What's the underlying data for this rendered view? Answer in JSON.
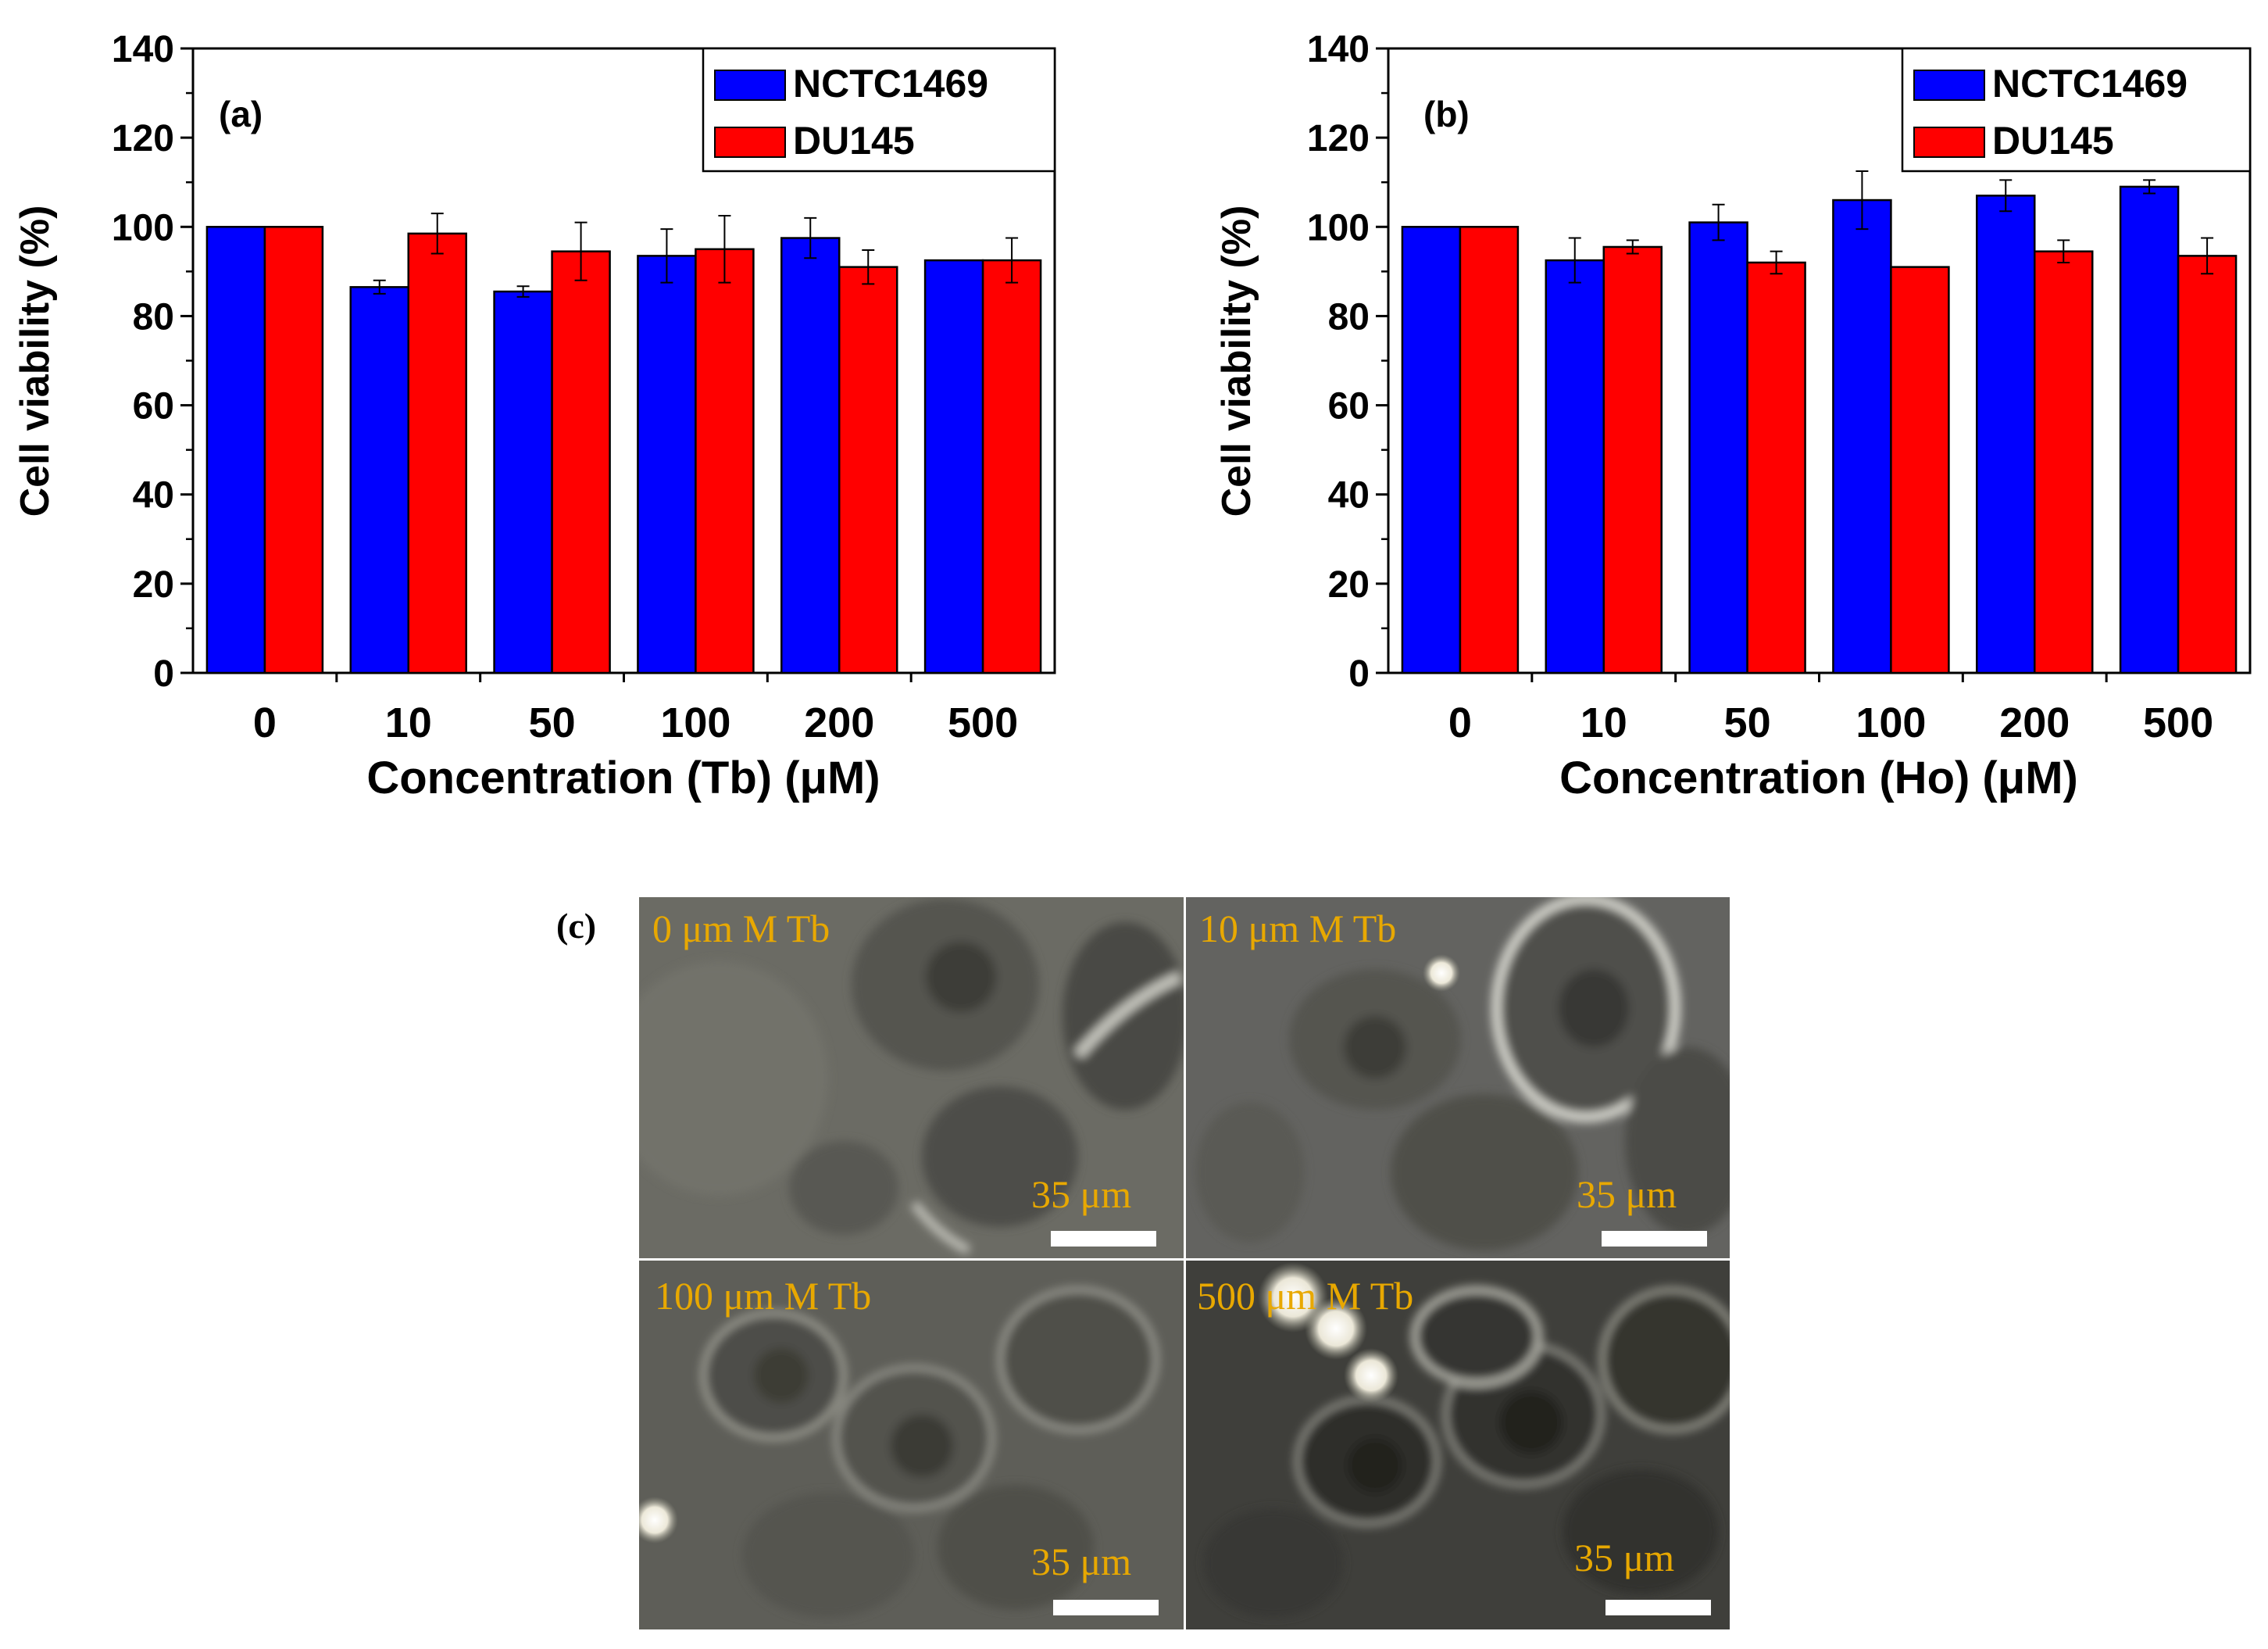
{
  "chart_data": [
    {
      "type": "bar",
      "panel": "(a)",
      "title": "",
      "xlabel": "Concentration (Tb) (μM)",
      "ylabel": "Cell viability (%)",
      "ylim": [
        0,
        140
      ],
      "yticks": [
        0,
        20,
        40,
        60,
        80,
        100,
        120,
        140
      ],
      "categories": [
        "0",
        "10",
        "50",
        "100",
        "200",
        "500"
      ],
      "legend_position": "top-right",
      "series": [
        {
          "name": "NCTC1469",
          "color": "#0000ff",
          "values": [
            100,
            86.5,
            85.5,
            93.5,
            97.5,
            92.5
          ],
          "errors": [
            0,
            1.5,
            1.2,
            6,
            4.5,
            0
          ]
        },
        {
          "name": "DU145",
          "color": "#ff0000",
          "values": [
            100,
            98.5,
            94.5,
            95,
            91,
            92.5
          ],
          "errors": [
            0,
            4.5,
            6.5,
            7.5,
            3.8,
            5
          ]
        }
      ]
    },
    {
      "type": "bar",
      "panel": "(b)",
      "title": "",
      "xlabel": "Concentration (Ho) (μM)",
      "ylabel": "Cell viability (%)",
      "ylim": [
        0,
        140
      ],
      "yticks": [
        0,
        20,
        40,
        60,
        80,
        100,
        120,
        140
      ],
      "categories": [
        "0",
        "10",
        "50",
        "100",
        "200",
        "500"
      ],
      "legend_position": "top-right",
      "series": [
        {
          "name": "NCTC1469",
          "color": "#0000ff",
          "values": [
            100,
            92.5,
            101,
            106,
            107,
            109
          ],
          "errors": [
            0,
            5,
            4,
            6.5,
            3.5,
            1.5
          ]
        },
        {
          "name": "DU145",
          "color": "#ff0000",
          "values": [
            100,
            95.5,
            92,
            91,
            94.5,
            93.5
          ],
          "errors": [
            0,
            1.5,
            2.5,
            0,
            2.5,
            4
          ]
        }
      ]
    }
  ],
  "micrographs": {
    "panel_label": "(c)",
    "scale_bar": "35 μm",
    "tiles": [
      {
        "label": "0 μm M Tb"
      },
      {
        "label": "10 μm M Tb"
      },
      {
        "label": "100 μm M Tb"
      },
      {
        "label": "500 μm M Tb"
      }
    ]
  },
  "colors": {
    "ncstc": "#0000ff",
    "du145": "#ff0000",
    "micro_label": "#e8a800"
  }
}
